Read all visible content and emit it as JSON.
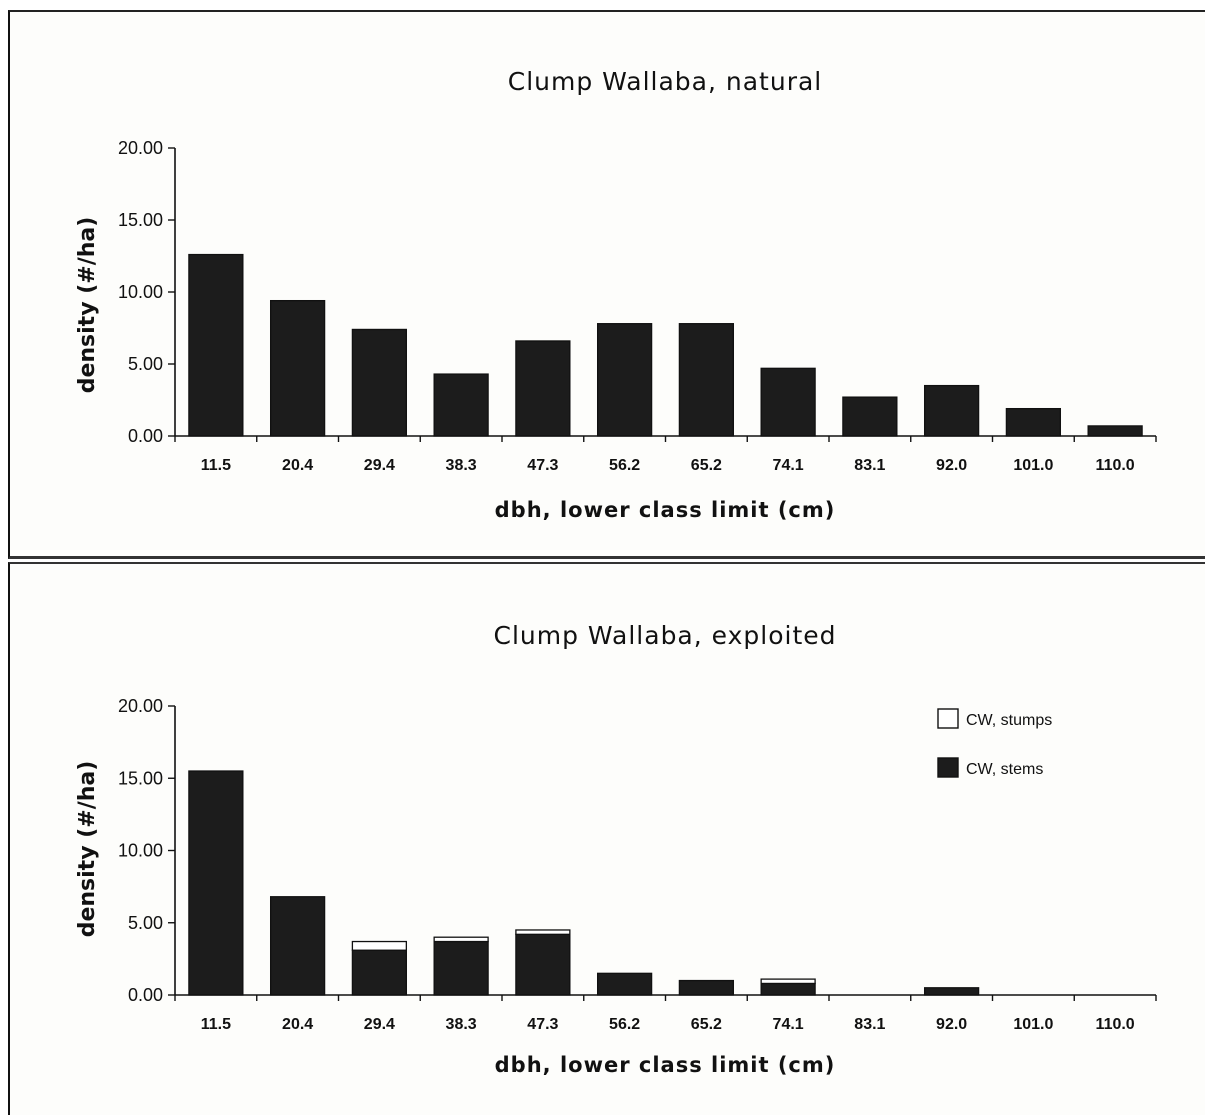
{
  "chart_data": [
    {
      "type": "bar",
      "title": "Clump Wallaba, natural",
      "xlabel": "dbh, lower class limit (cm)",
      "ylabel": "density (#/ha)",
      "ylim": [
        0,
        20
      ],
      "yticks": [
        "0.00",
        "5.00",
        "10.00",
        "15.00",
        "20.00"
      ],
      "categories": [
        "11.5",
        "20.4",
        "29.4",
        "38.3",
        "47.3",
        "56.2",
        "65.2",
        "74.1",
        "83.1",
        "92.0",
        "101.0",
        "110.0"
      ],
      "series": [
        {
          "values": [
            12.6,
            9.4,
            7.4,
            4.3,
            6.6,
            7.8,
            7.8,
            4.7,
            2.7,
            3.5,
            1.9,
            0.7
          ],
          "color": "#1c1c1c"
        }
      ]
    },
    {
      "type": "bar",
      "stacked": true,
      "title": "Clump Wallaba, exploited",
      "xlabel": "dbh, lower class limit (cm)",
      "ylabel": "density (#/ha)",
      "ylim": [
        0,
        20
      ],
      "yticks": [
        "0.00",
        "5.00",
        "10.00",
        "15.00",
        "20.00"
      ],
      "categories": [
        "11.5",
        "20.4",
        "29.4",
        "38.3",
        "47.3",
        "56.2",
        "65.2",
        "74.1",
        "83.1",
        "92.0",
        "101.0",
        "110.0"
      ],
      "legend_position": "top-right",
      "series": [
        {
          "name": "CW, stems",
          "values": [
            15.5,
            6.8,
            3.1,
            3.7,
            4.2,
            1.5,
            1.0,
            0.8,
            0,
            0.5,
            0,
            0
          ],
          "color": "#1c1c1c"
        },
        {
          "name": "CW, stumps",
          "values": [
            0,
            0,
            0.6,
            0.3,
            0.3,
            0,
            0,
            0.3,
            0,
            0,
            0,
            0
          ],
          "color": "#ffffff"
        }
      ]
    }
  ]
}
